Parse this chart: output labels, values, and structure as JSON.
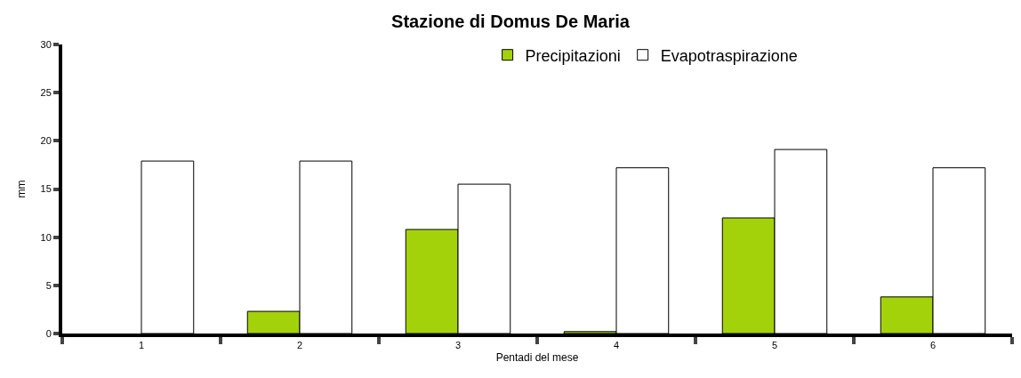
{
  "chart_data": {
    "type": "bar",
    "title": "Stazione di Domus De Maria",
    "xlabel": "Pentadi del mese",
    "ylabel": "mm",
    "categories": [
      "1",
      "2",
      "3",
      "4",
      "5",
      "6"
    ],
    "series": [
      {
        "name": "Precipitazioni",
        "color": "#a4d20a",
        "values": [
          null,
          2.3,
          10.8,
          0.2,
          12.0,
          3.8
        ]
      },
      {
        "name": "Evapotraspirazione",
        "color": "#ffffff",
        "values": [
          17.9,
          17.9,
          15.5,
          17.2,
          19.1,
          17.2
        ]
      }
    ],
    "ylim": [
      0,
      30
    ],
    "yticks": [
      0,
      5,
      10,
      15,
      20,
      25,
      30
    ],
    "legend": "top"
  }
}
